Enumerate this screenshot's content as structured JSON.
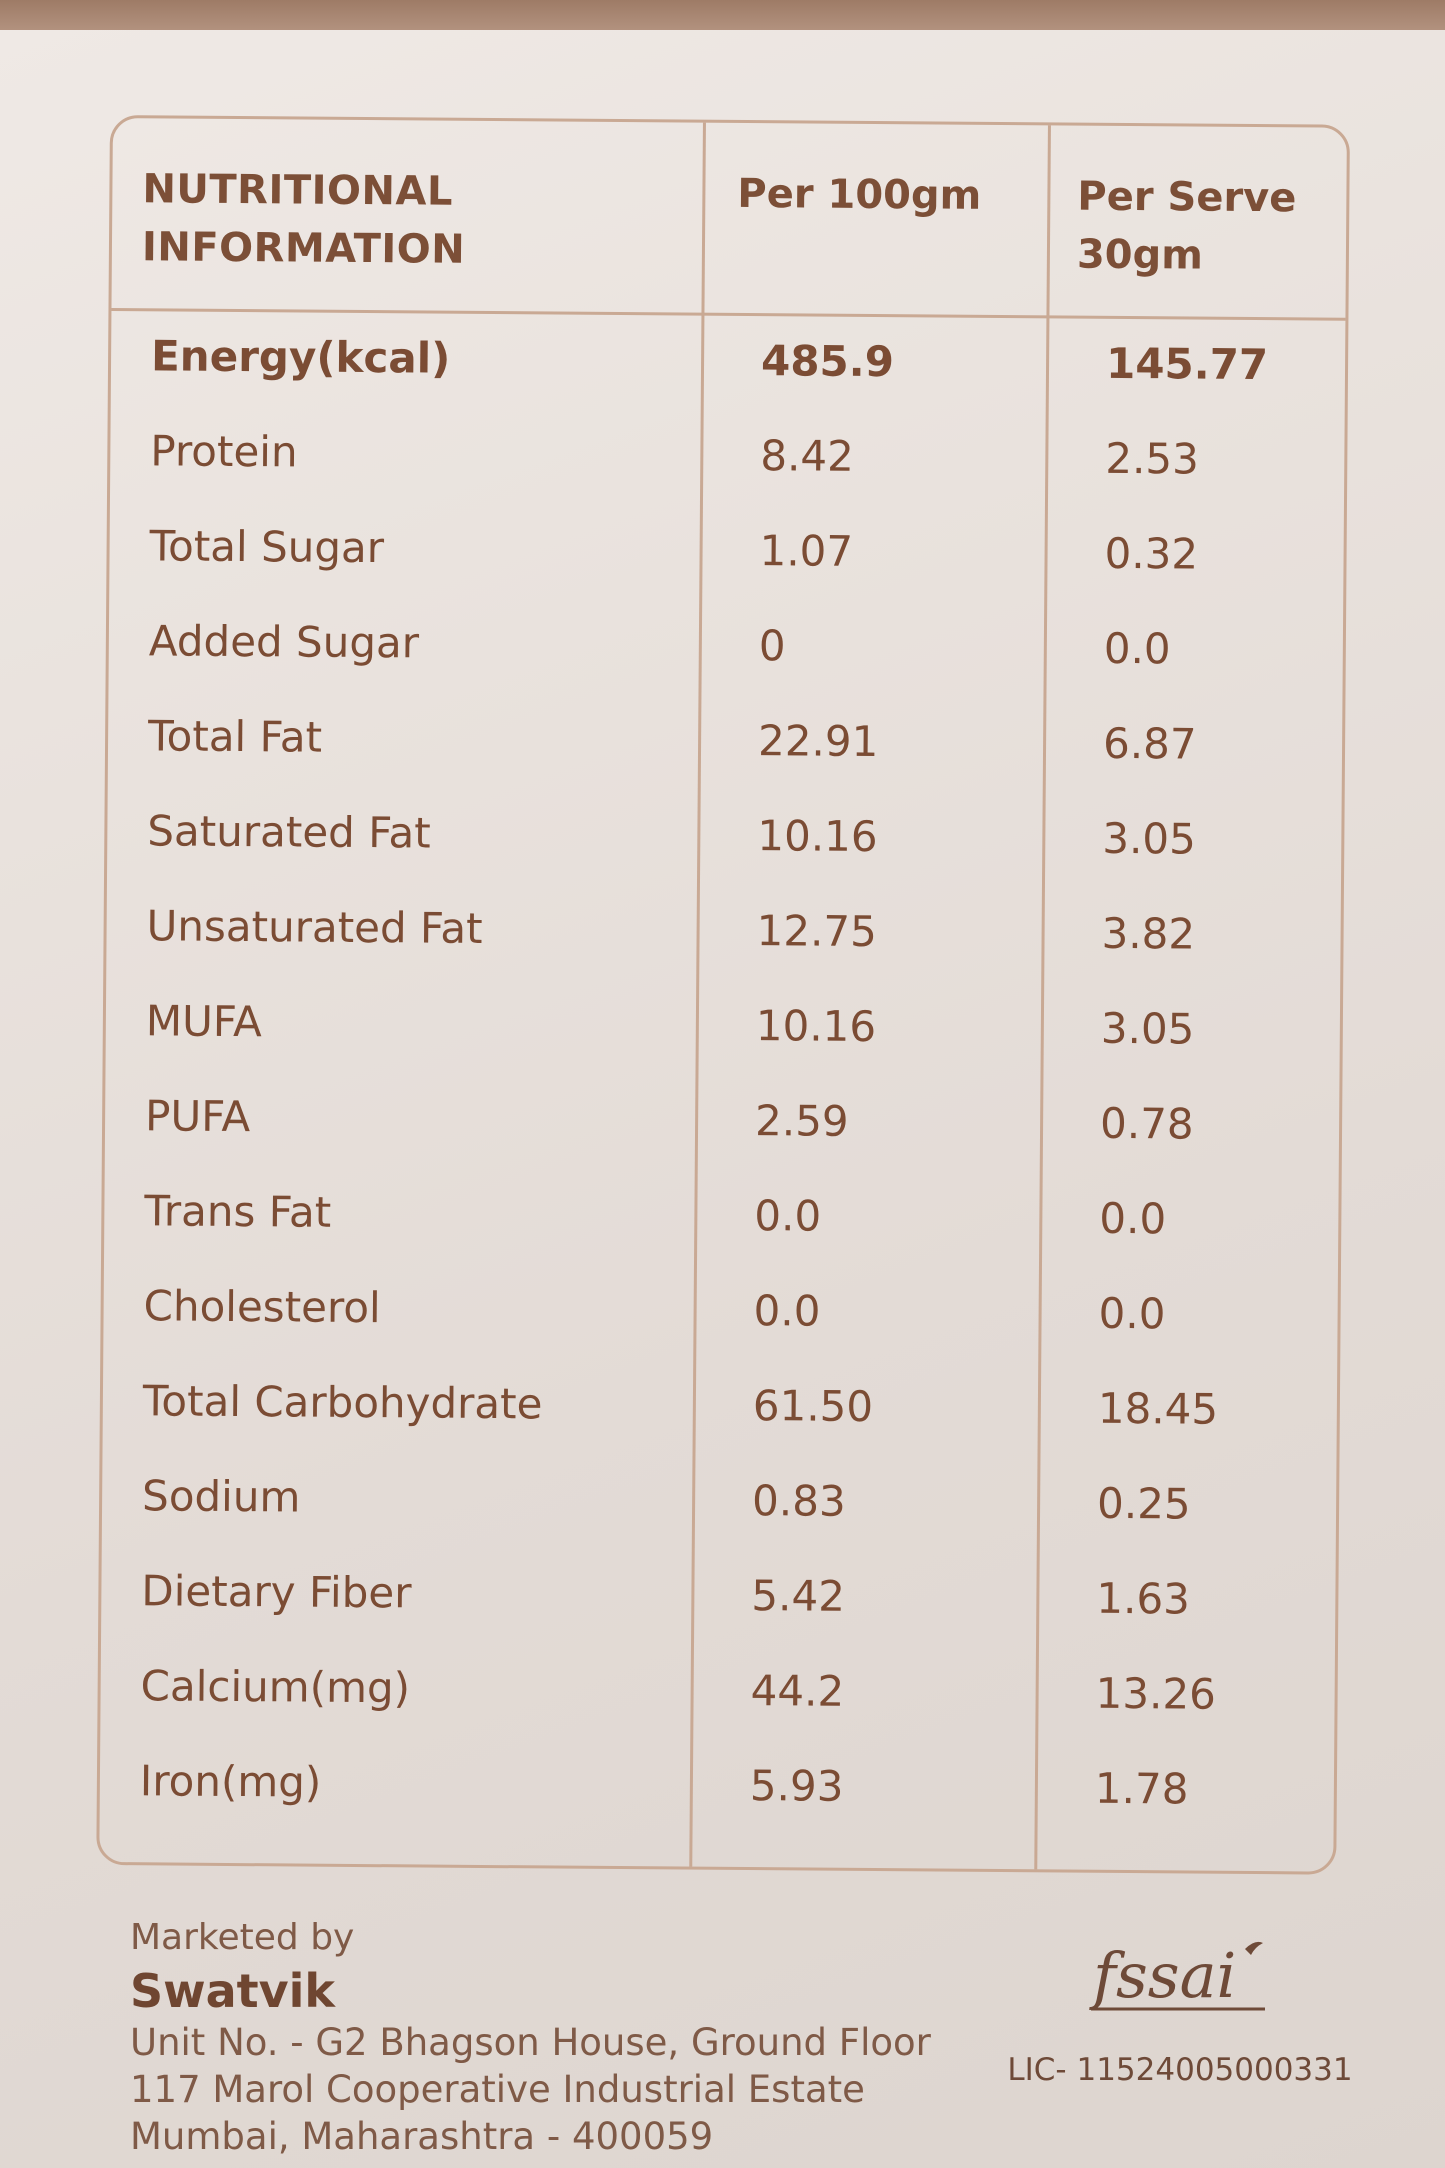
{
  "table": {
    "headers": [
      "NUTRITIONAL INFORMATION",
      "Per 100gm",
      "Per Serve 30gm"
    ],
    "header_lines": {
      "c0": [
        "NUTRITIONAL",
        "INFORMATION"
      ],
      "c1": [
        "Per 100gm"
      ],
      "c2": [
        "Per Serve",
        "30gm"
      ]
    },
    "rows": [
      {
        "nutrient": "Energy(kcal)",
        "per_100gm": "485.9",
        "per_serve": "145.77"
      },
      {
        "nutrient": "Protein",
        "per_100gm": "8.42",
        "per_serve": "2.53"
      },
      {
        "nutrient": "Total Sugar",
        "per_100gm": "1.07",
        "per_serve": "0.32"
      },
      {
        "nutrient": "Added Sugar",
        "per_100gm": "0",
        "per_serve": "0.0"
      },
      {
        "nutrient": "Total Fat",
        "per_100gm": "22.91",
        "per_serve": "6.87"
      },
      {
        "nutrient": "Saturated Fat",
        "per_100gm": "10.16",
        "per_serve": "3.05"
      },
      {
        "nutrient": "Unsaturated Fat",
        "per_100gm": "12.75",
        "per_serve": "3.82"
      },
      {
        "nutrient": "MUFA",
        "per_100gm": "10.16",
        "per_serve": "3.05"
      },
      {
        "nutrient": "PUFA",
        "per_100gm": "2.59",
        "per_serve": "0.78"
      },
      {
        "nutrient": "Trans Fat",
        "per_100gm": "0.0",
        "per_serve": "0.0"
      },
      {
        "nutrient": "Cholesterol",
        "per_100gm": "0.0",
        "per_serve": "0.0"
      },
      {
        "nutrient": "Total Carbohydrate",
        "per_100gm": "61.50",
        "per_serve": "18.45"
      },
      {
        "nutrient": "Sodium",
        "per_100gm": "0.83",
        "per_serve": "0.25"
      },
      {
        "nutrient": "Dietary Fiber",
        "per_100gm": "5.42",
        "per_serve": "1.63"
      },
      {
        "nutrient": "Calcium(mg)",
        "per_100gm": "44.2",
        "per_serve": "13.26"
      },
      {
        "nutrient": "Iron(mg)",
        "per_100gm": "5.93",
        "per_serve": "1.78"
      }
    ]
  },
  "footer": {
    "marketed_by": "Marketed by",
    "brand": "Swatvik",
    "address": [
      "Unit No. - G2 Bhagson House, Ground Floor",
      "117 Marol Cooperative Industrial Estate",
      "Mumbai, Maharashtra - 400059"
    ]
  },
  "fssai": {
    "logo_text": "fssai",
    "license": "LIC- 11524005000331"
  },
  "colors": {
    "text": "#7b4c34",
    "rule": "#c9a994",
    "paper": "#e9e2dd"
  }
}
